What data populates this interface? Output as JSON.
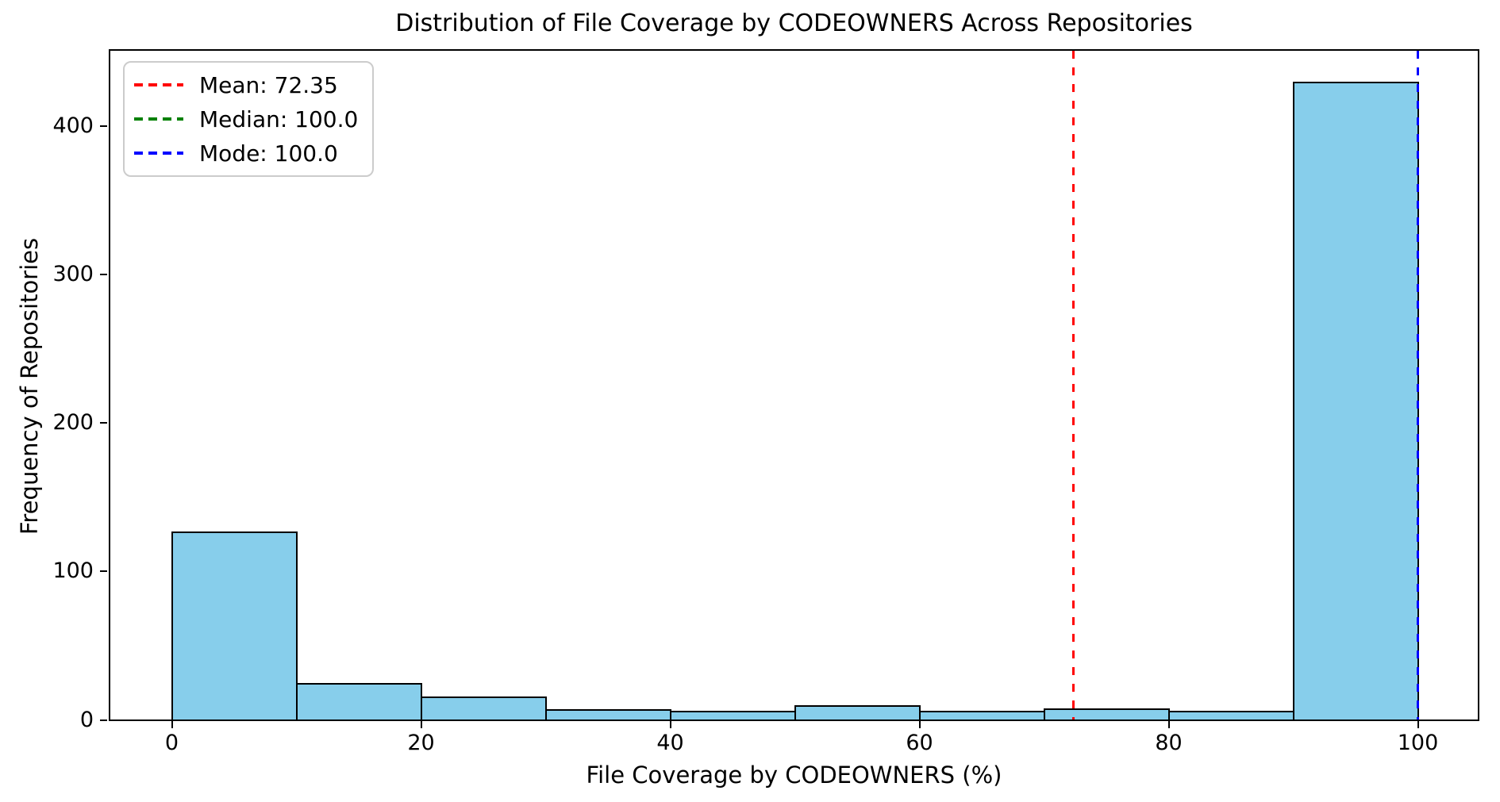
{
  "chart_data": {
    "type": "bar",
    "subtype": "histogram",
    "title": "Distribution of File Coverage by CODEOWNERS Across Repositories",
    "xlabel": "File Coverage by CODEOWNERS (%)",
    "ylabel": "Frequency of Repositories",
    "bin_edges": [
      0,
      10,
      20,
      30,
      40,
      50,
      60,
      70,
      80,
      90,
      100
    ],
    "counts": [
      127,
      25,
      16,
      7,
      6,
      10,
      6,
      8,
      6,
      430
    ],
    "xticks": [
      0,
      20,
      40,
      60,
      80,
      100
    ],
    "yticks": [
      0,
      100,
      200,
      300,
      400
    ],
    "xlim": [
      -5,
      105
    ],
    "ylim": [
      0,
      451.5
    ],
    "grid": false,
    "legend_position": "upper left",
    "stats": {
      "mean": 72.35,
      "median": 100.0,
      "mode": 100.0
    },
    "legend": [
      {
        "label": "Mean: 72.35",
        "color": "#ff0000"
      },
      {
        "label": "Median: 100.0",
        "color": "#008000"
      },
      {
        "label": "Mode: 100.0",
        "color": "#0000ff"
      }
    ],
    "colors": {
      "bar_fill": "#87CEEB",
      "bar_edge": "#000000",
      "mean_line": "#ff0000",
      "median_line": "#008000",
      "mode_line": "#0000ff"
    }
  }
}
